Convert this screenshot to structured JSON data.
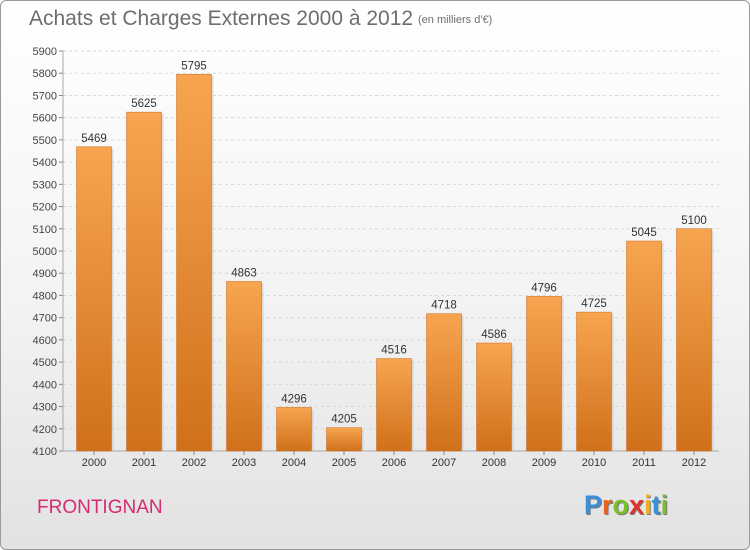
{
  "chart_data": {
    "type": "bar",
    "title": "Achats et Charges Externes 2000 à 2012",
    "subtitle": "(en milliers d'€)",
    "categories": [
      "2000",
      "2001",
      "2002",
      "2003",
      "2004",
      "2005",
      "2006",
      "2007",
      "2008",
      "2009",
      "2010",
      "2011",
      "2012"
    ],
    "values": [
      5469,
      5625,
      5795,
      4863,
      4296,
      4205,
      4516,
      4718,
      4586,
      4796,
      4725,
      5045,
      5100
    ],
    "ylim": [
      4100,
      5900
    ],
    "yticks": [
      4100,
      4200,
      4300,
      4400,
      4500,
      4600,
      4700,
      4800,
      4900,
      5000,
      5100,
      5200,
      5300,
      5400,
      5500,
      5600,
      5700,
      5800,
      5900
    ],
    "grid": true,
    "bar_color_top": "#f7a550",
    "bar_color_bottom": "#d0701a"
  },
  "footer": {
    "commune": "FRONTIGNAN",
    "logo_letters": [
      "P",
      "r",
      "o",
      "x",
      "i",
      "t",
      "i"
    ],
    "logo_colors": [
      "#3b8fd6",
      "#e8641e",
      "#7bbf2a",
      "#e0312b",
      "#f0b21a",
      "#3b8fd6",
      "#7bbf2a"
    ]
  }
}
